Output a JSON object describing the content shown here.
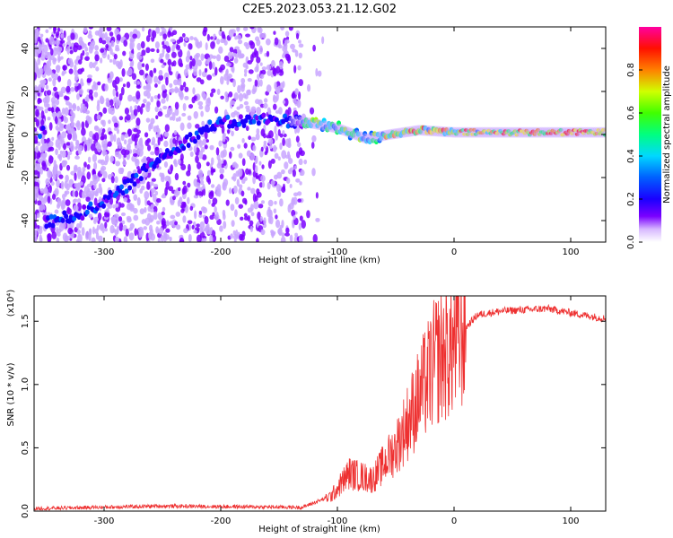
{
  "title": "C2E5.2023.053.21.12.G02",
  "chart_data": [
    {
      "type": "heatmap",
      "name": "spectrogram",
      "xlabel": "Height of straight line (km)",
      "ylabel": "Frequency (Hz)",
      "xlim": [
        -360,
        130
      ],
      "ylim": [
        -50,
        50
      ],
      "xticks": [
        -300,
        -200,
        -100,
        0,
        100
      ],
      "yticks": [
        -40,
        -20,
        0,
        20,
        40
      ],
      "colorbar": {
        "label": "Normalized spectral amplitude",
        "range": [
          0.0,
          1.0
        ],
        "ticks": [
          0.0,
          0.2,
          0.4,
          0.6,
          0.8
        ],
        "colormap": [
          "#ffffff",
          "#c9a6ff",
          "#7a00ff",
          "#1a00ff",
          "#0060ff",
          "#00d8ff",
          "#00ff60",
          "#a0ff00",
          "#ffff00",
          "#ff8000",
          "#ff0000",
          "#ff00a0"
        ]
      },
      "signal_track": {
        "description_points": [
          [
            -350,
            -41
          ],
          [
            -320,
            -37
          ],
          [
            -290,
            -28
          ],
          [
            -250,
            -10
          ],
          [
            -205,
            5
          ],
          [
            -165,
            7
          ],
          [
            -130,
            6
          ],
          [
            -100,
            3
          ],
          [
            -75,
            -2
          ],
          [
            -55,
            0
          ],
          [
            -30,
            2
          ],
          [
            0,
            1
          ],
          [
            50,
            1
          ],
          [
            130,
            1
          ]
        ]
      }
    },
    {
      "type": "line",
      "name": "snr",
      "xlabel": "Height of straight line (km)",
      "ylabel": "SNR (10 * v/v)",
      "yscale_label": "(x10⁴)",
      "xlim": [
        -360,
        130
      ],
      "ylim": [
        0,
        1.7
      ],
      "xticks": [
        -300,
        -200,
        -100,
        0,
        100
      ],
      "yticks": [
        0.0,
        0.5,
        1.0,
        1.5
      ],
      "color": "#ee3030",
      "envelope": [
        [
          -360,
          0.02
        ],
        [
          -250,
          0.04
        ],
        [
          -130,
          0.03
        ],
        [
          -105,
          0.12
        ],
        [
          -90,
          0.3
        ],
        [
          -70,
          0.25
        ],
        [
          -50,
          0.5
        ],
        [
          -30,
          0.9
        ],
        [
          -15,
          1.2
        ],
        [
          0,
          1.3
        ],
        [
          10,
          1.45
        ],
        [
          20,
          1.55
        ],
        [
          40,
          1.58
        ],
        [
          80,
          1.6
        ],
        [
          110,
          1.55
        ],
        [
          130,
          1.52
        ]
      ]
    }
  ]
}
